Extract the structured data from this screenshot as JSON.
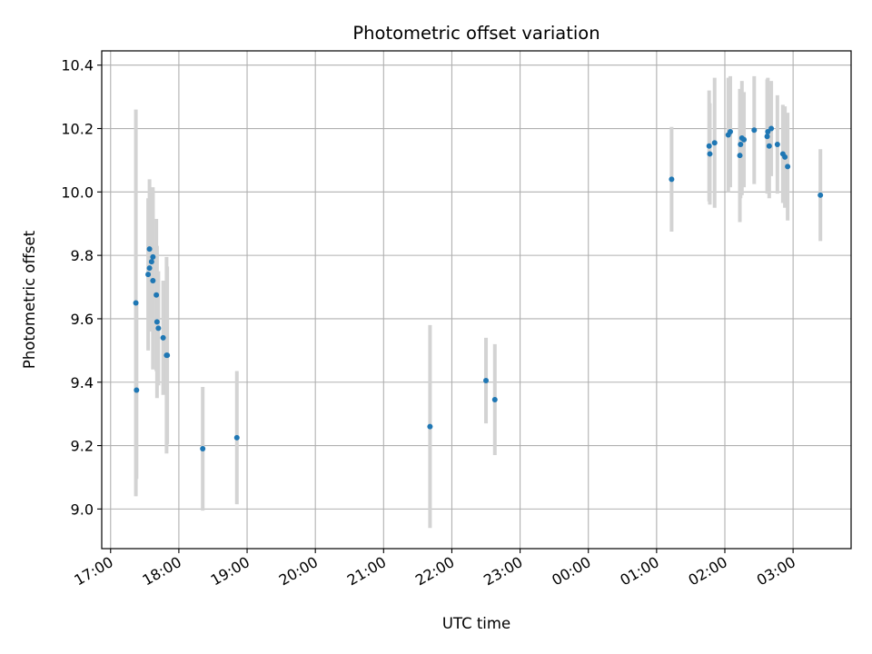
{
  "chart_data": {
    "type": "scatter",
    "title": "Photometric offset variation",
    "xlabel": "UTC time",
    "ylabel": "Photometric offset",
    "x_unit": "hours",
    "xlim": [
      16.87,
      27.85
    ],
    "ylim": [
      8.875,
      10.445
    ],
    "x_ticks": [
      {
        "value": 17,
        "label": "17:00"
      },
      {
        "value": 18,
        "label": "18:00"
      },
      {
        "value": 19,
        "label": "19:00"
      },
      {
        "value": 20,
        "label": "20:00"
      },
      {
        "value": 21,
        "label": "21:00"
      },
      {
        "value": 22,
        "label": "22:00"
      },
      {
        "value": 23,
        "label": "23:00"
      },
      {
        "value": 24,
        "label": "00:00"
      },
      {
        "value": 25,
        "label": "01:00"
      },
      {
        "value": 26,
        "label": "02:00"
      },
      {
        "value": 27,
        "label": "03:00"
      }
    ],
    "y_ticks": [
      {
        "value": 9.0,
        "label": "9.0"
      },
      {
        "value": 9.2,
        "label": "9.2"
      },
      {
        "value": 9.4,
        "label": "9.4"
      },
      {
        "value": 9.6,
        "label": "9.6"
      },
      {
        "value": 9.8,
        "label": "9.8"
      },
      {
        "value": 10.0,
        "label": "10.0"
      },
      {
        "value": 10.2,
        "label": "10.2"
      },
      {
        "value": 10.4,
        "label": "10.4"
      }
    ],
    "grid": true,
    "legend": "none",
    "colors": {
      "point": "#1f77b4",
      "errorbar": "#d3d3d3",
      "grid": "#b0b0b0"
    },
    "points": [
      {
        "x": 17.37,
        "y": 9.65,
        "err": 0.61
      },
      {
        "x": 17.38,
        "y": 9.375,
        "err": 0.28
      },
      {
        "x": 17.55,
        "y": 9.74,
        "err": 0.24
      },
      {
        "x": 17.57,
        "y": 9.82,
        "err": 0.22
      },
      {
        "x": 17.57,
        "y": 9.76,
        "err": 0.2
      },
      {
        "x": 17.6,
        "y": 9.78,
        "err": 0.22
      },
      {
        "x": 17.62,
        "y": 9.795,
        "err": 0.22
      },
      {
        "x": 17.62,
        "y": 9.72,
        "err": 0.28
      },
      {
        "x": 17.67,
        "y": 9.675,
        "err": 0.24
      },
      {
        "x": 17.68,
        "y": 9.59,
        "err": 0.24
      },
      {
        "x": 17.7,
        "y": 9.57,
        "err": 0.18
      },
      {
        "x": 17.77,
        "y": 9.54,
        "err": 0.18
      },
      {
        "x": 17.82,
        "y": 9.485,
        "err": 0.31
      },
      {
        "x": 17.83,
        "y": 9.485,
        "err": 0.28
      },
      {
        "x": 18.35,
        "y": 9.19,
        "err": 0.195
      },
      {
        "x": 18.85,
        "y": 9.225,
        "err": 0.21
      },
      {
        "x": 21.68,
        "y": 9.26,
        "err": 0.32
      },
      {
        "x": 22.5,
        "y": 9.405,
        "err": 0.135
      },
      {
        "x": 22.63,
        "y": 9.345,
        "err": 0.175
      },
      {
        "x": 25.22,
        "y": 10.04,
        "err": 0.165
      },
      {
        "x": 25.77,
        "y": 10.145,
        "err": 0.175
      },
      {
        "x": 25.78,
        "y": 10.12,
        "err": 0.16
      },
      {
        "x": 25.85,
        "y": 10.155,
        "err": 0.205
      },
      {
        "x": 26.05,
        "y": 10.18,
        "err": 0.18
      },
      {
        "x": 26.08,
        "y": 10.19,
        "err": 0.175
      },
      {
        "x": 26.22,
        "y": 10.115,
        "err": 0.21
      },
      {
        "x": 26.23,
        "y": 10.15,
        "err": 0.17
      },
      {
        "x": 26.25,
        "y": 10.17,
        "err": 0.18
      },
      {
        "x": 26.28,
        "y": 10.165,
        "err": 0.15
      },
      {
        "x": 26.43,
        "y": 10.195,
        "err": 0.17
      },
      {
        "x": 26.62,
        "y": 10.175,
        "err": 0.18
      },
      {
        "x": 26.63,
        "y": 10.19,
        "err": 0.17
      },
      {
        "x": 26.65,
        "y": 10.145,
        "err": 0.165
      },
      {
        "x": 26.68,
        "y": 10.2,
        "err": 0.15
      },
      {
        "x": 26.77,
        "y": 10.15,
        "err": 0.155
      },
      {
        "x": 26.85,
        "y": 10.12,
        "err": 0.155
      },
      {
        "x": 26.88,
        "y": 10.11,
        "err": 0.16
      },
      {
        "x": 26.92,
        "y": 10.08,
        "err": 0.17
      },
      {
        "x": 27.4,
        "y": 9.99,
        "err": 0.145
      }
    ]
  }
}
